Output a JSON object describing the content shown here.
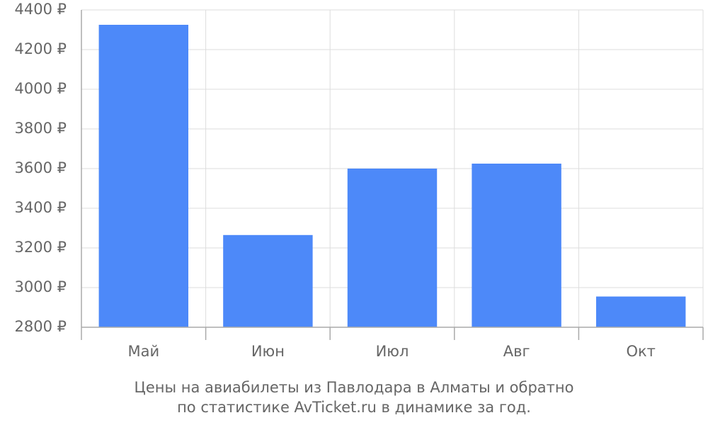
{
  "chart_data": {
    "type": "bar",
    "title": [
      "Цены на авиабилеты из Павлодара в Алматы и обратно",
      "по статистике AvTicket.ru в динамике за год."
    ],
    "categories": [
      "Май",
      "Июн",
      "Июл",
      "Авг",
      "Окт"
    ],
    "values": [
      4325,
      3265,
      3600,
      3625,
      2955
    ],
    "color": "#4d89f9",
    "ylim": [
      2800,
      4400
    ],
    "yticks": [
      {
        "value": 2800,
        "label": "2800 ₽"
      },
      {
        "value": 3000,
        "label": "3000 ₽"
      },
      {
        "value": 3200,
        "label": "3200 ₽"
      },
      {
        "value": 3400,
        "label": "3400 ₽"
      },
      {
        "value": 3600,
        "label": "3600 ₽"
      },
      {
        "value": 3800,
        "label": "3800 ₽"
      },
      {
        "value": 4000,
        "label": "4000 ₽"
      },
      {
        "value": 4200,
        "label": "4200 ₽"
      },
      {
        "value": 4400,
        "label": "4400 ₽"
      }
    ],
    "grid": true
  }
}
